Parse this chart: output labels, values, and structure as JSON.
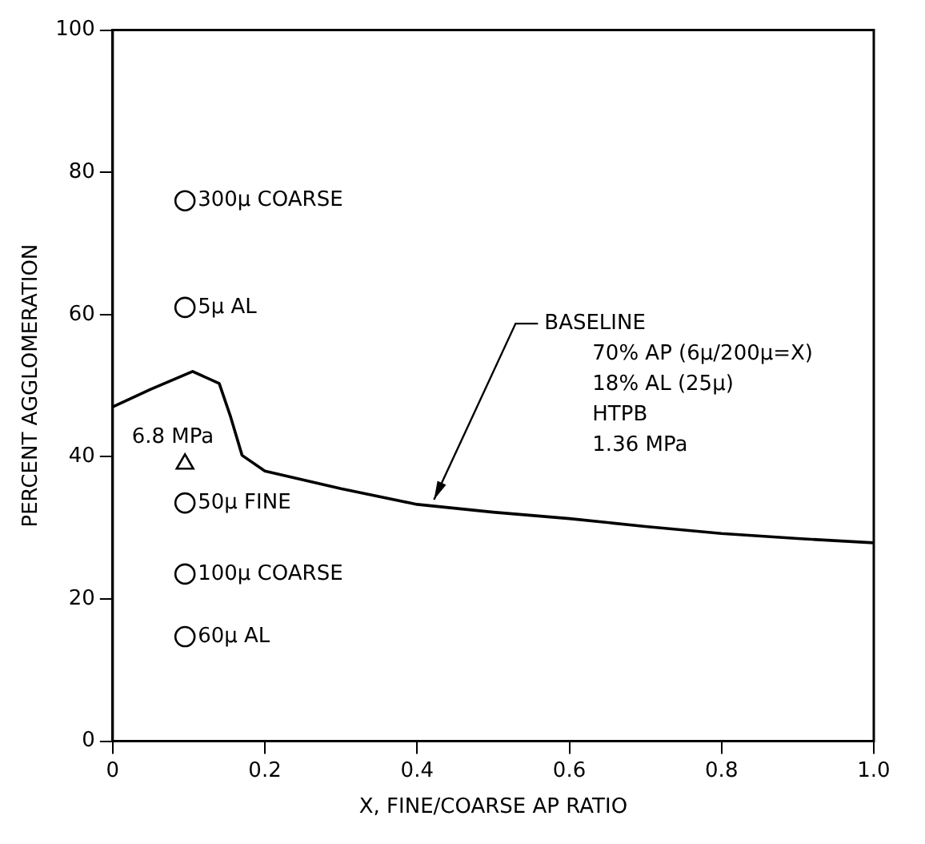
{
  "chart_data": {
    "type": "line",
    "xlabel": "X, FINE/COARSE AP RATIO",
    "ylabel": "PERCENT AGGLOMERATION",
    "xlim": [
      0,
      1
    ],
    "ylim": [
      0,
      100
    ],
    "xticks": [
      0,
      0.2,
      0.4,
      0.6,
      0.8,
      {
        "value": 1,
        "label": "1.0"
      }
    ],
    "yticks": [
      0,
      20,
      40,
      60,
      80,
      100
    ],
    "grid": false,
    "legend": false,
    "line_style": "solid",
    "series": [
      {
        "type": "line",
        "color": "#000000",
        "marker": "none",
        "x": [
          0,
          0.05,
          0.105,
          0.14,
          0.155,
          0.17,
          0.2,
          0.3,
          0.4,
          0.5,
          0.6,
          0.7,
          0.8,
          0.9,
          1
        ],
        "values": [
          47,
          49.5,
          52,
          50.3,
          45.6,
          40.2,
          38,
          35.5,
          33.3,
          32.2,
          31.3,
          30.2,
          29.2,
          28.5,
          27.9
        ]
      },
      {
        "type": "scatter",
        "name": "300μ COARSE",
        "color": "#000000",
        "marker": "circle",
        "x": [
          0.095
        ],
        "values": [
          76
        ]
      },
      {
        "type": "scatter",
        "name": "5μ AL",
        "color": "#000000",
        "marker": "circle",
        "x": [
          0.095
        ],
        "values": [
          61
        ]
      },
      {
        "type": "scatter",
        "name": "6.8 MPa",
        "color": "#000000",
        "marker": "triangle",
        "x": [
          0.095
        ],
        "values": [
          39
        ]
      },
      {
        "type": "scatter",
        "name": "50μ FINE",
        "color": "#000000",
        "marker": "circle",
        "x": [
          0.095
        ],
        "values": [
          33.5
        ]
      },
      {
        "type": "scatter",
        "name": "100μ COARSE",
        "color": "#000000",
        "marker": "circle",
        "x": [
          0.095
        ],
        "values": [
          23.5
        ]
      },
      {
        "type": "scatter",
        "name": "60μ AL",
        "color": "#000000",
        "marker": "circle",
        "x": [
          0.095
        ],
        "values": [
          14.7
        ]
      }
    ],
    "annotations": [
      {
        "text": "BASELINE\n70% AP (6μ/200μ=X)\n18% AL (25μ)\nHTPB\n1.36 MPa",
        "x": 0.42,
        "y": 33.5
      }
    ]
  }
}
